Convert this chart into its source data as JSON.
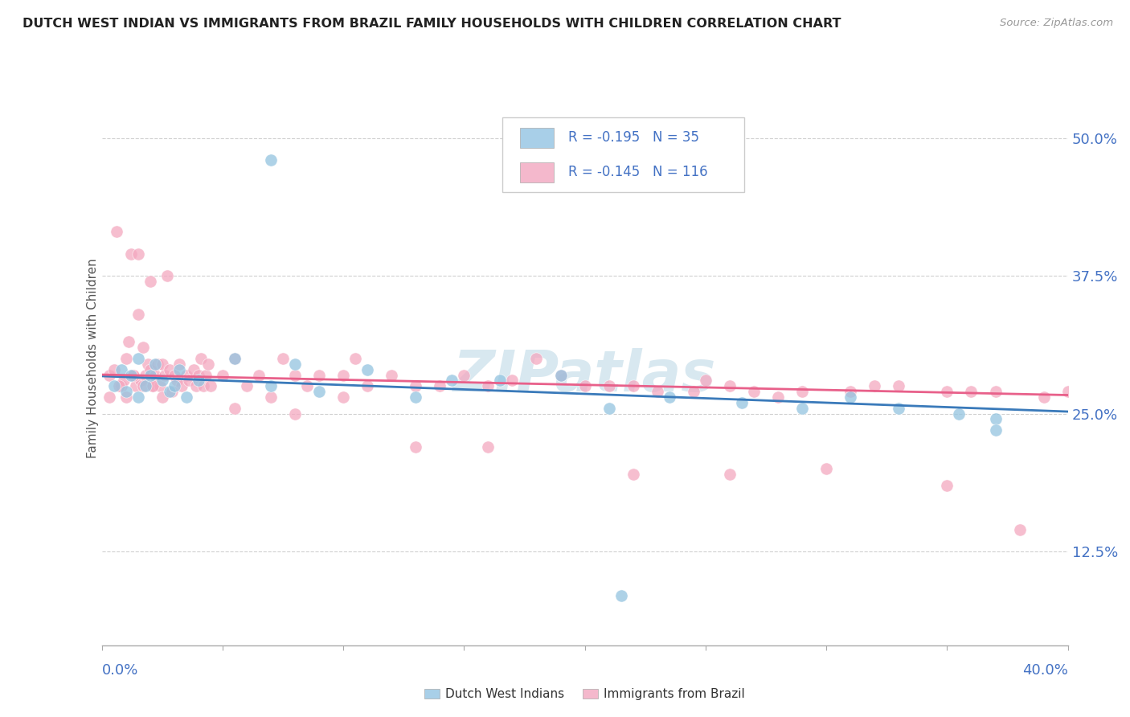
{
  "title": "DUTCH WEST INDIAN VS IMMIGRANTS FROM BRAZIL FAMILY HOUSEHOLDS WITH CHILDREN CORRELATION CHART",
  "source": "Source: ZipAtlas.com",
  "ylabel": "Family Households with Children",
  "ytick_labels": [
    "12.5%",
    "25.0%",
    "37.5%",
    "50.0%"
  ],
  "ytick_vals": [
    0.125,
    0.25,
    0.375,
    0.5
  ],
  "xlim": [
    0.0,
    0.4
  ],
  "ylim": [
    0.04,
    0.56
  ],
  "legend1_R": "-0.195",
  "legend1_N": "35",
  "legend2_R": "-0.145",
  "legend2_N": "116",
  "blue_scatter_color": "#93c4e0",
  "pink_scatter_color": "#f4a8c0",
  "blue_line_color": "#3a7aba",
  "pink_line_color": "#e8608a",
  "blue_legend_color": "#a8cfe8",
  "pink_legend_color": "#f4b8cc",
  "watermark": "ZIPatlas",
  "watermark_color": "#d8e8f0",
  "tick_color": "#4472c4",
  "title_color": "#222222",
  "source_color": "#999999",
  "ylabel_color": "#555555",
  "grid_color": "#d0d0d0"
}
